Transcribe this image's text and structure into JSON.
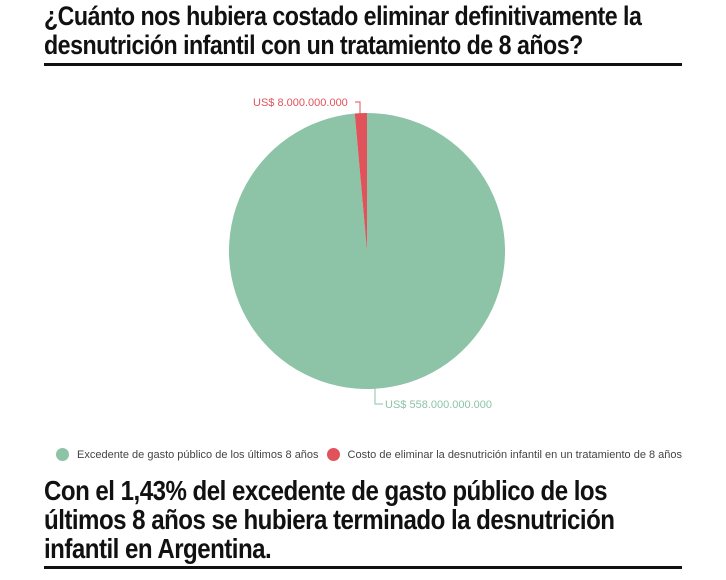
{
  "header": {
    "title_line1": "¿Cuánto nos hubiera costado eliminar definitivamente la",
    "title_line2": "desnutrición infantil con un tratamiento de 8 años?"
  },
  "footer": {
    "line1": "Con el 1,43% del excedente de gasto público de los",
    "line2": "últimos 8 años se hubiera terminado la desnutrición",
    "line3": "infantil en Argentina."
  },
  "chart_data": {
    "type": "pie",
    "title": "¿Cuánto nos hubiera costado eliminar definitivamente la desnutrición infantil con un tratamiento de 8 años?",
    "categories": [
      "Excedente de gasto público de los últimos 8 años",
      "Costo de eliminar la desnutrición infantil en un tratamiento de 8 años"
    ],
    "values": [
      558000000000,
      8000000000
    ],
    "data_labels": [
      "US$ 558.000.000.000",
      "US$ 8.000.000.000"
    ],
    "colors": [
      "#8dc3a7",
      "#e0535a"
    ],
    "legend_position": "bottom"
  },
  "legend": {
    "items": [
      {
        "label": "Excedente de gasto público de los últimos 8 años",
        "color": "#8dc3a7"
      },
      {
        "label": "Costo de eliminar la desnutrición infantil en un tratamiento de 8 años",
        "color": "#e0535a"
      }
    ]
  },
  "labels": {
    "small": "US$ 8.000.000.000",
    "large": "US$ 558.000.000.000"
  }
}
